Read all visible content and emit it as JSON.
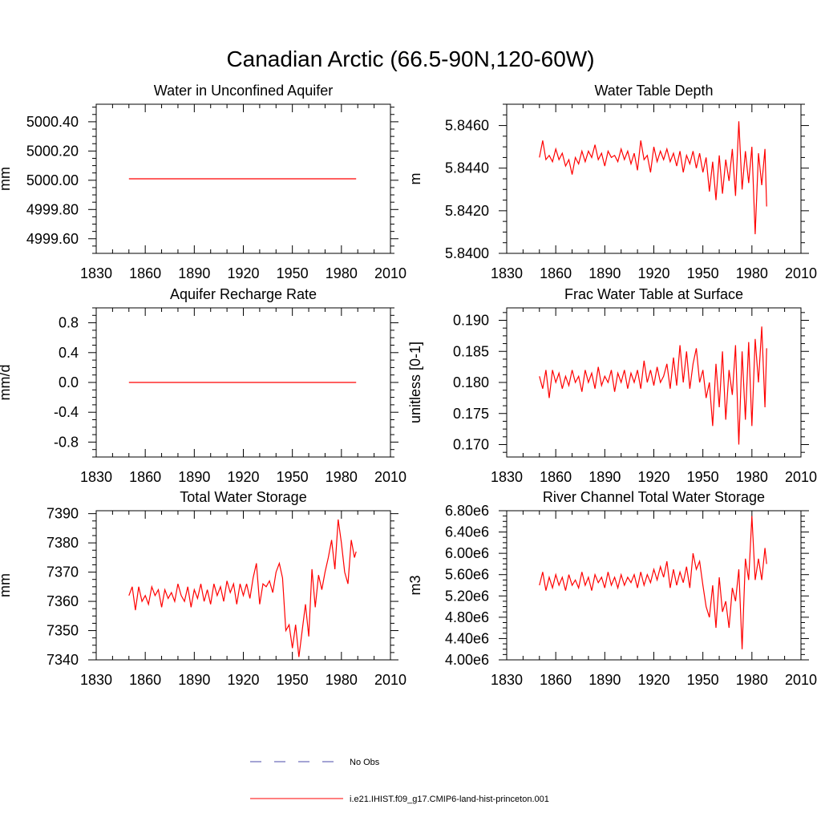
{
  "page": {
    "title": "Canadian Arctic (66.5-90N,120-60W)"
  },
  "colors": {
    "model_line": "#ff0000",
    "obs_line": "#4a4aa8",
    "axis": "#000000"
  },
  "legend": {
    "placement": "bottom-center",
    "entries": [
      {
        "label": "No Obs",
        "style": "dashed",
        "color": "#4a4aa8"
      },
      {
        "label": "i.e21.IHIST.f09_g17.CMIP6-land-hist-princeton.001",
        "style": "solid",
        "color": "#ff0000"
      }
    ]
  },
  "chart_data": [
    {
      "type": "line",
      "title": "Water in Unconfined Aquifer",
      "ylabel": "mm",
      "xlabel": "",
      "xlim": [
        1830,
        2010
      ],
      "ylim": [
        4999.5,
        5000.52
      ],
      "xticks": [
        1830,
        1860,
        1890,
        1920,
        1950,
        1980,
        2010
      ],
      "xtick_labels": [
        "1830",
        "1860",
        "1890",
        "1920",
        "1950",
        "1980",
        "2010"
      ],
      "yticks": [
        4999.6,
        4999.8,
        5000.0,
        5000.2,
        5000.4
      ],
      "ytick_labels": [
        "4999.60",
        "4999.80",
        "5000.00",
        "5000.20",
        "5000.40"
      ],
      "x": [
        1850,
        1989
      ],
      "series": [
        {
          "values": [
            5000.01,
            5000.01
          ]
        }
      ]
    },
    {
      "type": "line",
      "title": "Water Table Depth",
      "ylabel": "m",
      "xlabel": "",
      "xlim": [
        1830,
        2010
      ],
      "ylim": [
        5.84,
        5.847
      ],
      "xticks": [
        1830,
        1860,
        1890,
        1920,
        1950,
        1980,
        2010
      ],
      "xtick_labels": [
        "1830",
        "1860",
        "1890",
        "1920",
        "1950",
        "1980",
        "2010"
      ],
      "yticks": [
        5.84,
        5.842,
        5.844,
        5.846
      ],
      "ytick_labels": [
        "5.8400",
        "5.8420",
        "5.8440",
        "5.8460"
      ],
      "x": [
        1850,
        1852,
        1854,
        1856,
        1858,
        1860,
        1862,
        1864,
        1866,
        1868,
        1870,
        1872,
        1874,
        1876,
        1878,
        1880,
        1882,
        1884,
        1886,
        1888,
        1890,
        1892,
        1894,
        1896,
        1898,
        1900,
        1902,
        1904,
        1906,
        1908,
        1910,
        1912,
        1914,
        1916,
        1918,
        1920,
        1922,
        1924,
        1926,
        1928,
        1930,
        1932,
        1934,
        1936,
        1938,
        1940,
        1942,
        1944,
        1946,
        1948,
        1950,
        1952,
        1954,
        1956,
        1958,
        1960,
        1962,
        1964,
        1966,
        1968,
        1970,
        1972,
        1974,
        1976,
        1978,
        1980,
        1982,
        1984,
        1986,
        1988,
        1989
      ],
      "series": [
        {
          "values": [
            5.8445,
            5.8453,
            5.8444,
            5.8446,
            5.8443,
            5.8449,
            5.8444,
            5.8447,
            5.8441,
            5.8444,
            5.8437,
            5.8445,
            5.8442,
            5.8448,
            5.8443,
            5.8448,
            5.8445,
            5.8451,
            5.8444,
            5.8447,
            5.8441,
            5.8448,
            5.8445,
            5.8446,
            5.8443,
            5.8449,
            5.8444,
            5.8448,
            5.8442,
            5.8447,
            5.8439,
            5.8453,
            5.8444,
            5.8446,
            5.8438,
            5.845,
            5.8443,
            5.8448,
            5.8444,
            5.8449,
            5.8443,
            5.8447,
            5.8441,
            5.8448,
            5.8438,
            5.8446,
            5.8442,
            5.8448,
            5.844,
            5.8447,
            5.8438,
            5.8445,
            5.8429,
            5.8443,
            5.8425,
            5.8446,
            5.8428,
            5.8444,
            5.8434,
            5.8449,
            5.8427,
            5.8462,
            5.843,
            5.8448,
            5.8433,
            5.845,
            5.8409,
            5.8447,
            5.8432,
            5.8449,
            5.8422
          ]
        }
      ]
    },
    {
      "type": "line",
      "title": "Aquifer Recharge Rate",
      "ylabel": "mm/d",
      "xlabel": "",
      "xlim": [
        1830,
        2010
      ],
      "ylim": [
        -1.0,
        1.0
      ],
      "xticks": [
        1830,
        1860,
        1890,
        1920,
        1950,
        1980,
        2010
      ],
      "xtick_labels": [
        "1830",
        "1860",
        "1890",
        "1920",
        "1950",
        "1980",
        "2010"
      ],
      "yticks": [
        -0.8,
        -0.4,
        0.0,
        0.4,
        0.8
      ],
      "ytick_labels": [
        "-0.8",
        "-0.4",
        "0.0",
        "0.4",
        "0.8"
      ],
      "x": [
        1850,
        1989
      ],
      "series": [
        {
          "values": [
            0.0,
            0.0
          ]
        }
      ]
    },
    {
      "type": "line",
      "title": "Frac Water Table at Surface",
      "ylabel": "unitless [0-1]",
      "xlabel": "",
      "xlim": [
        1830,
        2010
      ],
      "ylim": [
        0.168,
        0.192
      ],
      "xticks": [
        1830,
        1860,
        1890,
        1920,
        1950,
        1980,
        2010
      ],
      "xtick_labels": [
        "1830",
        "1860",
        "1890",
        "1920",
        "1950",
        "1980",
        "2010"
      ],
      "yticks": [
        0.17,
        0.175,
        0.18,
        0.185,
        0.19
      ],
      "ytick_labels": [
        "0.170",
        "0.175",
        "0.180",
        "0.185",
        "0.190"
      ],
      "x": [
        1850,
        1852,
        1854,
        1856,
        1858,
        1860,
        1862,
        1864,
        1866,
        1868,
        1870,
        1872,
        1874,
        1876,
        1878,
        1880,
        1882,
        1884,
        1886,
        1888,
        1890,
        1892,
        1894,
        1896,
        1898,
        1900,
        1902,
        1904,
        1906,
        1908,
        1910,
        1912,
        1914,
        1916,
        1918,
        1920,
        1922,
        1924,
        1926,
        1928,
        1930,
        1932,
        1934,
        1936,
        1938,
        1940,
        1942,
        1944,
        1946,
        1948,
        1950,
        1952,
        1954,
        1956,
        1958,
        1960,
        1962,
        1964,
        1966,
        1968,
        1970,
        1972,
        1974,
        1976,
        1978,
        1980,
        1982,
        1984,
        1986,
        1988,
        1989
      ],
      "series": [
        {
          "values": [
            0.181,
            0.179,
            0.182,
            0.1775,
            0.182,
            0.18,
            0.1815,
            0.179,
            0.181,
            0.1795,
            0.182,
            0.18,
            0.181,
            0.1785,
            0.182,
            0.18,
            0.1815,
            0.179,
            0.1825,
            0.1795,
            0.181,
            0.18,
            0.182,
            0.1785,
            0.1815,
            0.18,
            0.182,
            0.179,
            0.1815,
            0.18,
            0.182,
            0.179,
            0.1835,
            0.18,
            0.182,
            0.1795,
            0.1825,
            0.18,
            0.181,
            0.183,
            0.179,
            0.184,
            0.1795,
            0.186,
            0.18,
            0.185,
            0.179,
            0.183,
            0.1855,
            0.18,
            0.182,
            0.1775,
            0.18,
            0.173,
            0.183,
            0.176,
            0.185,
            0.174,
            0.182,
            0.178,
            0.186,
            0.17,
            0.185,
            0.174,
            0.1865,
            0.173,
            0.187,
            0.18,
            0.189,
            0.176,
            0.1855
          ]
        }
      ]
    },
    {
      "type": "line",
      "title": "Total Water Storage",
      "ylabel": "mm",
      "xlabel": "",
      "xlim": [
        1830,
        2010
      ],
      "ylim": [
        7340,
        7391
      ],
      "xticks": [
        1830,
        1860,
        1890,
        1920,
        1950,
        1980,
        2010
      ],
      "xtick_labels": [
        "1830",
        "1860",
        "1890",
        "1920",
        "1950",
        "1980",
        "2010"
      ],
      "yticks": [
        7340,
        7350,
        7360,
        7370,
        7380,
        7390
      ],
      "ytick_labels": [
        "7340",
        "7350",
        "7360",
        "7370",
        "7380",
        "7390"
      ],
      "x": [
        1850,
        1852,
        1854,
        1856,
        1858,
        1860,
        1862,
        1864,
        1866,
        1868,
        1870,
        1872,
        1874,
        1876,
        1878,
        1880,
        1882,
        1884,
        1886,
        1888,
        1890,
        1892,
        1894,
        1896,
        1898,
        1900,
        1902,
        1904,
        1906,
        1908,
        1910,
        1912,
        1914,
        1916,
        1918,
        1920,
        1922,
        1924,
        1926,
        1928,
        1930,
        1932,
        1934,
        1936,
        1938,
        1940,
        1942,
        1944,
        1946,
        1948,
        1950,
        1952,
        1954,
        1956,
        1958,
        1960,
        1962,
        1964,
        1966,
        1968,
        1970,
        1972,
        1974,
        1976,
        1978,
        1980,
        1982,
        1984,
        1986,
        1988,
        1989
      ],
      "series": [
        {
          "values": [
            7362,
            7365,
            7357,
            7365,
            7360,
            7362,
            7359,
            7365,
            7362,
            7364,
            7358,
            7364,
            7361,
            7363,
            7360,
            7366,
            7362,
            7360,
            7365,
            7358,
            7364,
            7361,
            7366,
            7360,
            7364,
            7359,
            7366,
            7362,
            7365,
            7360,
            7367,
            7363,
            7366,
            7359,
            7366,
            7362,
            7366,
            7361,
            7368,
            7373,
            7359,
            7366,
            7365,
            7367,
            7363,
            7370,
            7373,
            7368,
            7350,
            7352,
            7344,
            7352,
            7341,
            7350,
            7359,
            7348,
            7371,
            7358,
            7369,
            7364,
            7370,
            7375,
            7381,
            7371,
            7388,
            7380,
            7370,
            7366,
            7381,
            7375,
            7377
          ]
        }
      ]
    },
    {
      "type": "line",
      "title": "River Channel Total Water Storage",
      "ylabel": "m3",
      "xlabel": "",
      "xlim": [
        1830,
        2010
      ],
      "ylim": [
        4000000,
        6800000
      ],
      "xticks": [
        1830,
        1860,
        1890,
        1920,
        1950,
        1980,
        2010
      ],
      "xtick_labels": [
        "1830",
        "1860",
        "1890",
        "1920",
        "1950",
        "1980",
        "2010"
      ],
      "yticks": [
        4000000,
        4400000,
        4800000,
        5200000,
        5600000,
        6000000,
        6400000,
        6800000
      ],
      "ytick_labels": [
        "4.00e6",
        "4.40e6",
        "4.80e6",
        "5.20e6",
        "5.60e6",
        "6.00e6",
        "6.40e6",
        "6.80e6"
      ],
      "x": [
        1850,
        1852,
        1854,
        1856,
        1858,
        1860,
        1862,
        1864,
        1866,
        1868,
        1870,
        1872,
        1874,
        1876,
        1878,
        1880,
        1882,
        1884,
        1886,
        1888,
        1890,
        1892,
        1894,
        1896,
        1898,
        1900,
        1902,
        1904,
        1906,
        1908,
        1910,
        1912,
        1914,
        1916,
        1918,
        1920,
        1922,
        1924,
        1926,
        1928,
        1930,
        1932,
        1934,
        1936,
        1938,
        1940,
        1942,
        1944,
        1946,
        1948,
        1950,
        1952,
        1954,
        1956,
        1958,
        1960,
        1962,
        1964,
        1966,
        1968,
        1970,
        1972,
        1974,
        1976,
        1978,
        1980,
        1982,
        1984,
        1986,
        1988,
        1989
      ],
      "series": [
        {
          "values": [
            5400000,
            5650000,
            5300000,
            5550000,
            5350000,
            5600000,
            5400000,
            5550000,
            5300000,
            5600000,
            5400000,
            5500000,
            5350000,
            5650000,
            5400000,
            5550000,
            5300000,
            5600000,
            5450000,
            5550000,
            5350000,
            5650000,
            5400000,
            5550000,
            5350000,
            5600000,
            5400000,
            5550000,
            5450000,
            5600000,
            5350000,
            5650000,
            5400000,
            5600000,
            5450000,
            5700000,
            5500000,
            5750000,
            5550000,
            5850000,
            5350000,
            5700000,
            5400000,
            5650000,
            5450000,
            5750000,
            5350000,
            6000000,
            5700000,
            5850000,
            5400000,
            5000000,
            4800000,
            5400000,
            4600000,
            5550000,
            4900000,
            5100000,
            4600000,
            5350000,
            5100000,
            5700000,
            4200000,
            5900000,
            5500000,
            6700000,
            5500000,
            5900000,
            5500000,
            6100000,
            5800000
          ]
        }
      ]
    }
  ]
}
